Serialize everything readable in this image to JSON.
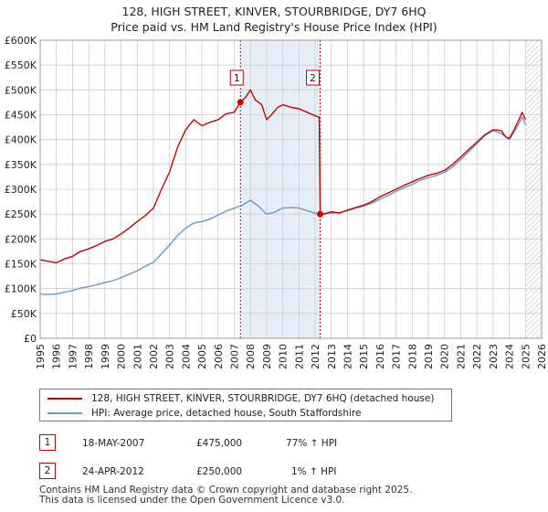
{
  "title": {
    "line1": "128, HIGH STREET, KINVER, STOURBRIDGE, DY7 6HQ",
    "line2": "Price paid vs. HM Land Registry's House Price Index (HPI)"
  },
  "colors": {
    "price_line": "#cc0000",
    "hpi_line": "#6699cc",
    "shade": "#e8eef8",
    "marker_line": "#cc0000",
    "grid": "#cccccc"
  },
  "chart_data": {
    "type": "line",
    "xlim": [
      1995,
      2026
    ],
    "ylim": [
      0,
      600000
    ],
    "y_ticks": [
      0,
      50000,
      100000,
      150000,
      200000,
      250000,
      300000,
      350000,
      400000,
      450000,
      500000,
      550000,
      600000
    ],
    "y_tick_labels": [
      "£0",
      "£50K",
      "£100K",
      "£150K",
      "£200K",
      "£250K",
      "£300K",
      "£350K",
      "£400K",
      "£450K",
      "£500K",
      "£550K",
      "£600K"
    ],
    "x_ticks": [
      1995,
      1996,
      1997,
      1998,
      1999,
      2000,
      2001,
      2002,
      2003,
      2004,
      2005,
      2006,
      2007,
      2008,
      2009,
      2010,
      2011,
      2012,
      2013,
      2014,
      2015,
      2016,
      2017,
      2018,
      2019,
      2020,
      2021,
      2022,
      2023,
      2024,
      2025,
      2026
    ],
    "x_tick_labels": [
      "1995",
      "1996",
      "1997",
      "1998",
      "1999",
      "2000",
      "2001",
      "2002",
      "2003",
      "2004",
      "2005",
      "2006",
      "2007",
      "2008",
      "2009",
      "2010",
      "2011",
      "2012",
      "2013",
      "2014",
      "2015",
      "2016",
      "2017",
      "2018",
      "2019",
      "2020",
      "2021",
      "2022",
      "2023",
      "2024",
      "2025",
      "2026"
    ],
    "grid": true,
    "shaded_range": [
      2007.38,
      2012.31
    ],
    "hatched_from": 2025.0,
    "sale_markers": [
      {
        "label": "1",
        "x": 2007.38,
        "y": 475000
      },
      {
        "label": "2",
        "x": 2012.31,
        "y": 250000
      }
    ],
    "series": [
      {
        "name": "128, HIGH STREET, KINVER, STOURBRIDGE, DY7 6HQ (detached house)",
        "x": [
          1995.0,
          1995.5,
          1996.0,
          1996.5,
          1997.0,
          1997.5,
          1998.0,
          1998.5,
          1999.0,
          1999.5,
          2000.0,
          2000.5,
          2001.0,
          2001.5,
          2002.0,
          2002.5,
          2003.0,
          2003.5,
          2004.0,
          2004.5,
          2005.0,
          2005.5,
          2006.0,
          2006.5,
          2007.0,
          2007.38,
          2007.7,
          2008.0,
          2008.3,
          2008.7,
          2009.0,
          2009.3,
          2009.7,
          2010.0,
          2010.5,
          2011.0,
          2011.5,
          2012.0,
          2012.25,
          2012.31,
          2012.5,
          2013.0,
          2013.5,
          2014.0,
          2014.5,
          2015.0,
          2015.5,
          2016.0,
          2016.5,
          2017.0,
          2017.5,
          2018.0,
          2018.5,
          2019.0,
          2019.5,
          2020.0,
          2020.5,
          2021.0,
          2021.5,
          2022.0,
          2022.5,
          2023.0,
          2023.5,
          2023.8,
          2024.0,
          2024.3,
          2024.6,
          2024.8,
          2025.0
        ],
        "values": [
          158000,
          155000,
          152000,
          160000,
          165000,
          175000,
          180000,
          187000,
          195000,
          200000,
          210000,
          222000,
          235000,
          247000,
          262000,
          300000,
          335000,
          385000,
          420000,
          440000,
          428000,
          435000,
          440000,
          452000,
          455000,
          475000,
          485000,
          500000,
          480000,
          470000,
          440000,
          450000,
          465000,
          470000,
          465000,
          462000,
          455000,
          448000,
          445000,
          250000,
          250000,
          255000,
          252000,
          258000,
          263000,
          268000,
          275000,
          285000,
          292000,
          300000,
          308000,
          315000,
          322000,
          328000,
          332000,
          338000,
          350000,
          365000,
          380000,
          395000,
          410000,
          420000,
          418000,
          405000,
          402000,
          420000,
          440000,
          455000,
          440000
        ]
      },
      {
        "name": "HPI: Average price, detached house, South Staffordshire",
        "x": [
          1995.0,
          1995.5,
          1996.0,
          1996.5,
          1997.0,
          1997.5,
          1998.0,
          1998.5,
          1999.0,
          1999.5,
          2000.0,
          2000.5,
          2001.0,
          2001.5,
          2002.0,
          2002.5,
          2003.0,
          2003.5,
          2004.0,
          2004.5,
          2005.0,
          2005.5,
          2006.0,
          2006.5,
          2007.0,
          2007.5,
          2008.0,
          2008.5,
          2009.0,
          2009.5,
          2010.0,
          2010.5,
          2011.0,
          2011.5,
          2012.0,
          2012.31,
          2012.5,
          2013.0,
          2013.5,
          2014.0,
          2014.5,
          2015.0,
          2015.5,
          2016.0,
          2016.5,
          2017.0,
          2017.5,
          2018.0,
          2018.5,
          2019.0,
          2019.5,
          2020.0,
          2020.5,
          2021.0,
          2021.5,
          2022.0,
          2022.5,
          2023.0,
          2023.5,
          2023.8,
          2024.0,
          2024.3,
          2024.6,
          2024.8,
          2025.0
        ],
        "values": [
          89000,
          88000,
          89000,
          93000,
          96000,
          101000,
          104000,
          108000,
          112000,
          116000,
          122000,
          129000,
          136000,
          145000,
          153000,
          170000,
          188000,
          207000,
          222000,
          232000,
          235000,
          240000,
          248000,
          256000,
          262000,
          268000,
          278000,
          266000,
          250000,
          254000,
          262000,
          263000,
          262000,
          257000,
          252000,
          250000,
          250000,
          252000,
          253000,
          257000,
          262000,
          266000,
          272000,
          280000,
          287000,
          296000,
          303000,
          310000,
          318000,
          323000,
          328000,
          334000,
          345000,
          360000,
          376000,
          392000,
          408000,
          418000,
          412000,
          405000,
          400000,
          415000,
          432000,
          445000,
          430000
        ]
      }
    ]
  },
  "legend": {
    "price_label": "128, HIGH STREET, KINVER, STOURBRIDGE, DY7 6HQ (detached house)",
    "hpi_label": "HPI: Average price, detached house, South Staffordshire"
  },
  "sales": [
    {
      "num": "1",
      "date": "18-MAY-2007",
      "price": "£475,000",
      "hpi": "77% ↑ HPI"
    },
    {
      "num": "2",
      "date": "24-APR-2012",
      "price": "£250,000",
      "hpi": "1% ↑ HPI"
    }
  ],
  "footer": {
    "line1": "Contains HM Land Registry data © Crown copyright and database right 2025.",
    "line2": "This data is licensed under the Open Government Licence v3.0."
  }
}
